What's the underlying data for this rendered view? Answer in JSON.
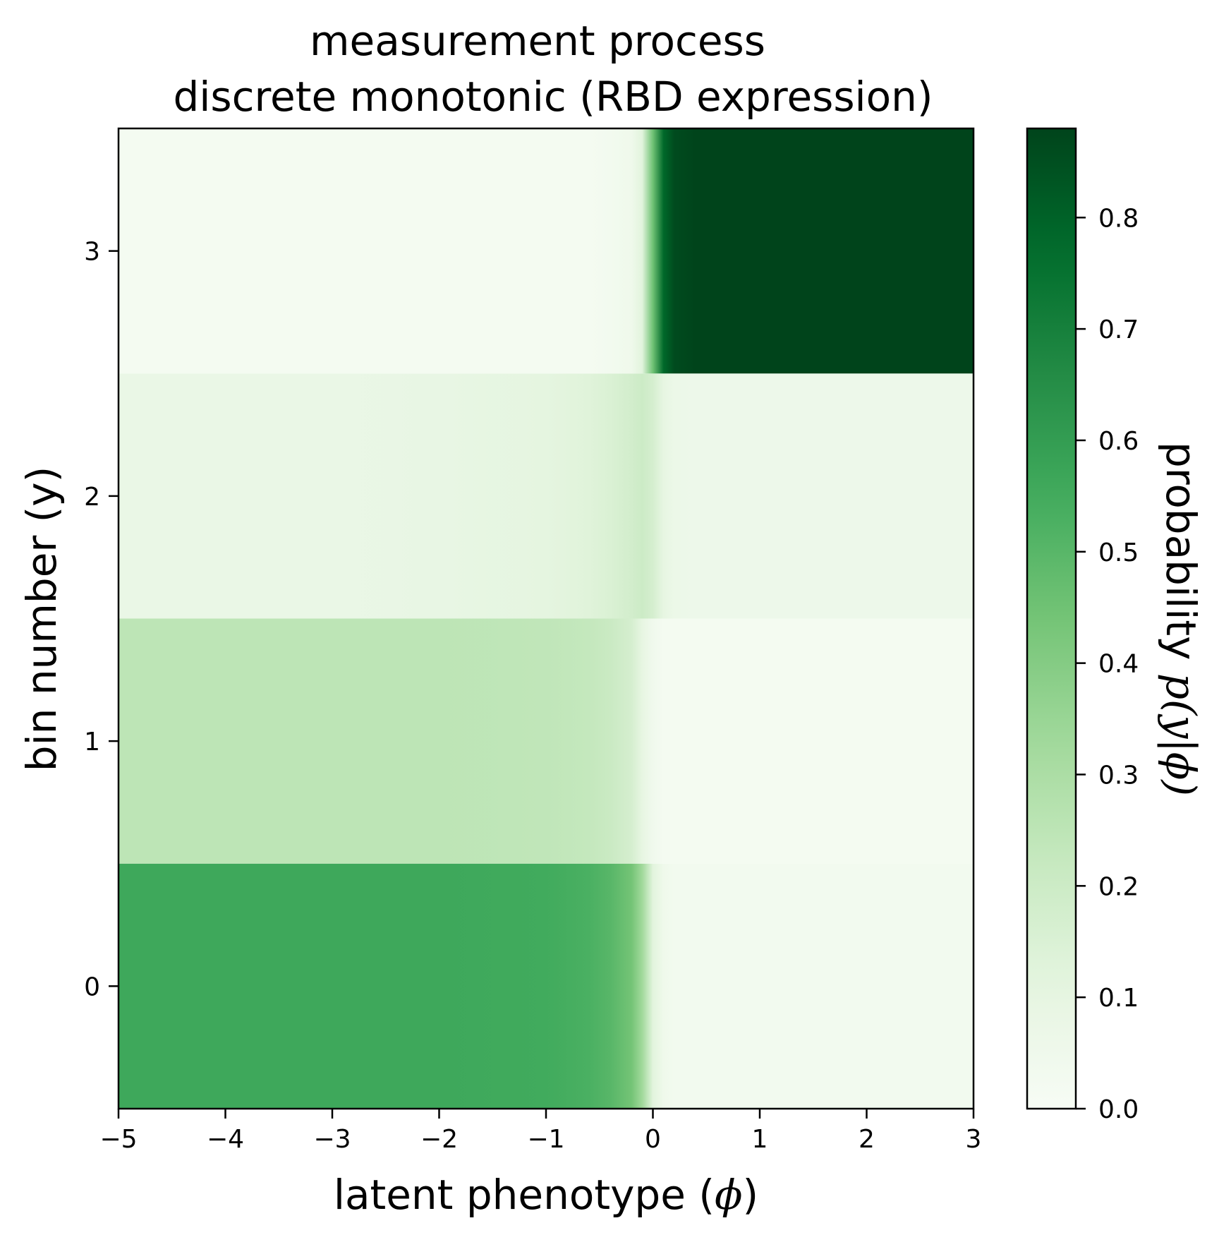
{
  "chart_data": {
    "type": "heatmap",
    "title_line1": "measurement process",
    "title_line2": "discrete monotonic (RBD expression)",
    "xlabel": {
      "text": "latent phenotype (",
      "symbol": "ϕ",
      "close": ")"
    },
    "ylabel": "bin number (y)",
    "colorbar_label": {
      "text": "probability ",
      "math": "p(y|ϕ)"
    },
    "xlim": [
      -5,
      3
    ],
    "ylim": [
      -0.5,
      3.5
    ],
    "x_ticks": [
      -5,
      -4,
      -3,
      -2,
      -1,
      0,
      1,
      2,
      3
    ],
    "x_tick_labels": [
      "−5",
      "−4",
      "−3",
      "−2",
      "−1",
      "0",
      "1",
      "2",
      "3"
    ],
    "y_ticks": [
      0,
      1,
      2,
      3
    ],
    "y_tick_labels": [
      "0",
      "1",
      "2",
      "3"
    ],
    "colorbar_range": [
      0,
      0.88
    ],
    "colorbar_ticks": [
      0.0,
      0.1,
      0.2,
      0.3,
      0.4,
      0.5,
      0.6,
      0.7,
      0.8
    ],
    "colorbar_tick_labels": [
      "0.0",
      "0.1",
      "0.2",
      "0.3",
      "0.4",
      "0.5",
      "0.6",
      "0.7",
      "0.8"
    ],
    "colormap": "Greens",
    "bins": [
      0,
      1,
      2,
      3
    ],
    "phi": [
      -5,
      -4,
      -3,
      -2,
      -1,
      -0.6,
      -0.4,
      -0.2,
      -0.1,
      0,
      0.1,
      0.2,
      0.4,
      0.6,
      1,
      2,
      3
    ],
    "probabilities": [
      [
        0.56,
        0.56,
        0.56,
        0.56,
        0.55,
        0.53,
        0.5,
        0.44,
        0.33,
        0.12,
        0.05,
        0.03,
        0.03,
        0.03,
        0.03,
        0.03,
        0.03
      ],
      [
        0.25,
        0.25,
        0.25,
        0.25,
        0.24,
        0.23,
        0.21,
        0.17,
        0.1,
        0.04,
        0.02,
        0.02,
        0.02,
        0.02,
        0.02,
        0.02,
        0.02
      ],
      [
        0.08,
        0.08,
        0.08,
        0.09,
        0.11,
        0.13,
        0.15,
        0.18,
        0.2,
        0.17,
        0.1,
        0.07,
        0.06,
        0.06,
        0.06,
        0.06,
        0.06
      ],
      [
        0.02,
        0.02,
        0.02,
        0.02,
        0.02,
        0.02,
        0.03,
        0.05,
        0.12,
        0.45,
        0.78,
        0.86,
        0.88,
        0.88,
        0.88,
        0.88,
        0.88
      ]
    ]
  }
}
